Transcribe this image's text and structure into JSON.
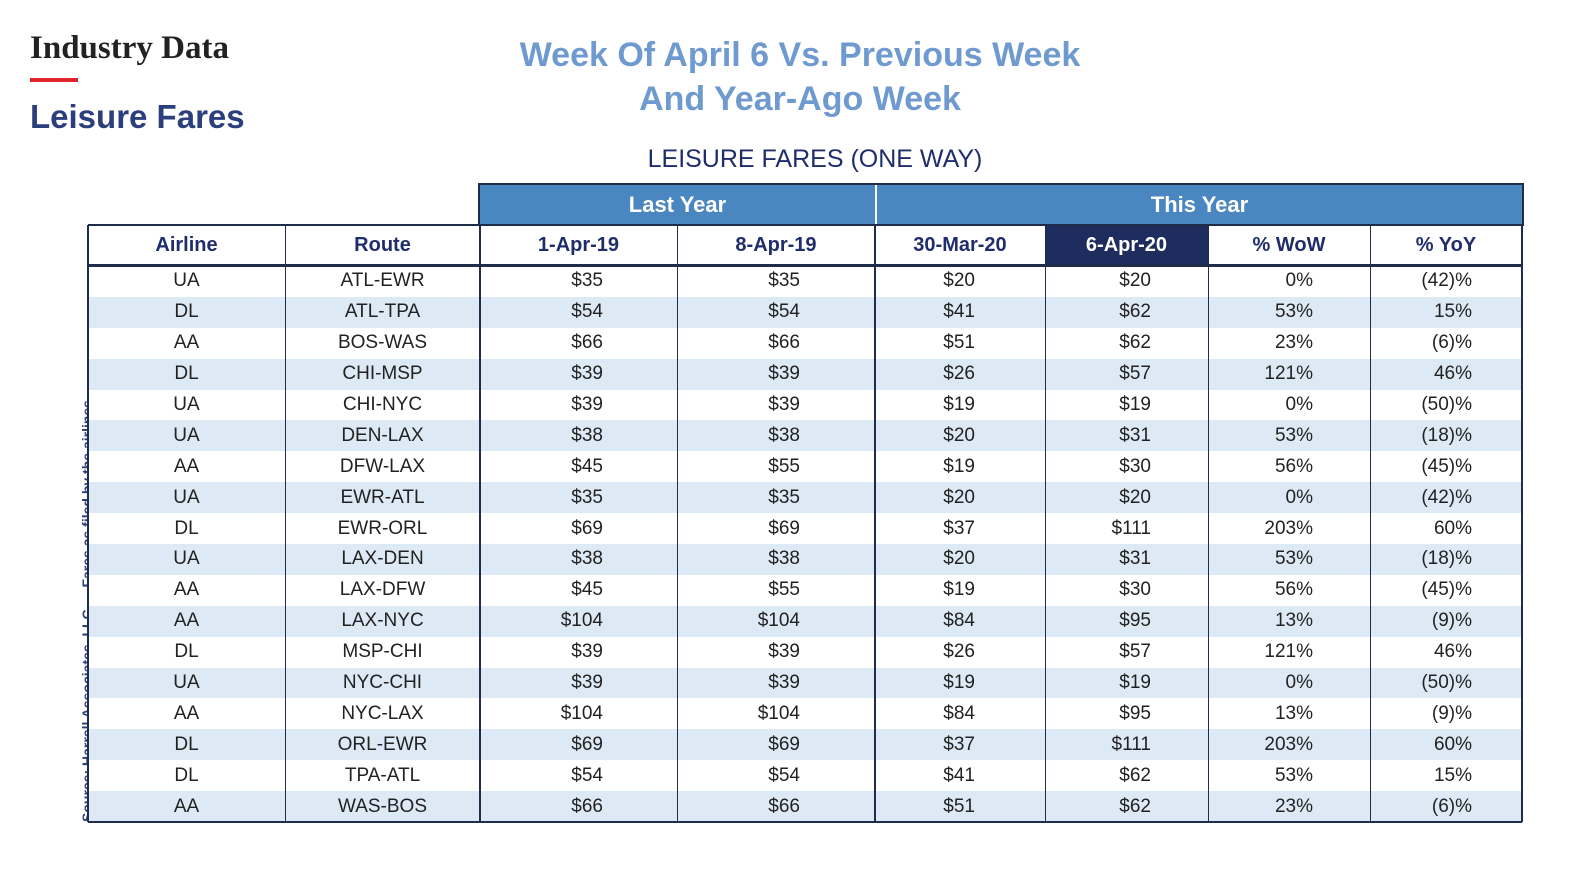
{
  "header": {
    "section": "Industry Data",
    "subtitle": "Leisure Fares",
    "title_line1": "Week Of April 6 Vs. Previous Week",
    "title_line2": "And Year-Ago Week"
  },
  "table": {
    "caption": "LEISURE FARES (ONE WAY)",
    "groups": [
      "Last Year",
      "This Year"
    ],
    "columns": [
      "Airline",
      "Route",
      "1-Apr-19",
      "8-Apr-19",
      "30-Mar-20",
      "6-Apr-20",
      "% WoW",
      "% YoY"
    ],
    "rows": [
      [
        "UA",
        "ATL-EWR",
        "$35",
        "$35",
        "$20",
        "$20",
        "0%",
        "(42)%"
      ],
      [
        "DL",
        "ATL-TPA",
        "$54",
        "$54",
        "$41",
        "$62",
        "53%",
        "15%"
      ],
      [
        "AA",
        "BOS-WAS",
        "$66",
        "$66",
        "$51",
        "$62",
        "23%",
        "(6)%"
      ],
      [
        "DL",
        "CHI-MSP",
        "$39",
        "$39",
        "$26",
        "$57",
        "121%",
        "46%"
      ],
      [
        "UA",
        "CHI-NYC",
        "$39",
        "$39",
        "$19",
        "$19",
        "0%",
        "(50)%"
      ],
      [
        "UA",
        "DEN-LAX",
        "$38",
        "$38",
        "$20",
        "$31",
        "53%",
        "(18)%"
      ],
      [
        "AA",
        "DFW-LAX",
        "$45",
        "$55",
        "$19",
        "$30",
        "56%",
        "(45)%"
      ],
      [
        "UA",
        "EWR-ATL",
        "$35",
        "$35",
        "$20",
        "$20",
        "0%",
        "(42)%"
      ],
      [
        "DL",
        "EWR-ORL",
        "$69",
        "$69",
        "$37",
        "$111",
        "203%",
        "60%"
      ],
      [
        "UA",
        "LAX-DEN",
        "$38",
        "$38",
        "$20",
        "$31",
        "53%",
        "(18)%"
      ],
      [
        "AA",
        "LAX-DFW",
        "$45",
        "$55",
        "$19",
        "$30",
        "56%",
        "(45)%"
      ],
      [
        "AA",
        "LAX-NYC",
        "$104",
        "$104",
        "$84",
        "$95",
        "13%",
        "(9)%"
      ],
      [
        "DL",
        "MSP-CHI",
        "$39",
        "$39",
        "$26",
        "$57",
        "121%",
        "46%"
      ],
      [
        "UA",
        "NYC-CHI",
        "$39",
        "$39",
        "$19",
        "$19",
        "0%",
        "(50)%"
      ],
      [
        "AA",
        "NYC-LAX",
        "$104",
        "$104",
        "$84",
        "$95",
        "13%",
        "(9)%"
      ],
      [
        "DL",
        "ORL-EWR",
        "$69",
        "$69",
        "$37",
        "$111",
        "203%",
        "60%"
      ],
      [
        "DL",
        "TPA-ATL",
        "$54",
        "$54",
        "$41",
        "$62",
        "53%",
        "15%"
      ],
      [
        "AA",
        "WAS-BOS",
        "$66",
        "$66",
        "$51",
        "$62",
        "23%",
        "(6)%"
      ]
    ]
  },
  "source": "Source: Harrell Associates, LLC — Fares as filed by the airlines."
}
